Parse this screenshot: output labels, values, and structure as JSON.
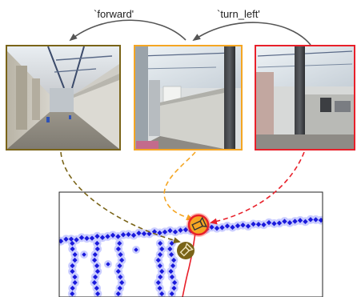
{
  "actions": {
    "forward": "`forward'",
    "turn_left": "`turn_left'"
  },
  "frames": [
    {
      "id": "frame-1",
      "border_color": "#7a6418",
      "scene": "hallway-with-doors"
    },
    {
      "id": "frame-2",
      "border_color": "#f5a623",
      "scene": "office-partition"
    },
    {
      "id": "frame-3",
      "border_color": "#e8202a",
      "scene": "open-office-pillar"
    }
  ],
  "arrows": [
    {
      "from": "frame-1",
      "color": "#7a6418",
      "style": "dashed"
    },
    {
      "from": "frame-2",
      "color": "#f5a623",
      "style": "dashed"
    },
    {
      "from": "frame-3",
      "color": "#e8202a",
      "style": "dashed"
    }
  ],
  "map": {
    "trajectory_color": "#1a1adc",
    "markers": [
      {
        "name": "current-pose",
        "fill": "#f5a623",
        "ring": "#e8202a"
      },
      {
        "name": "previous-pose",
        "fill": "#7a6418"
      }
    ]
  },
  "colors": {
    "action_arrow": "#555555"
  }
}
